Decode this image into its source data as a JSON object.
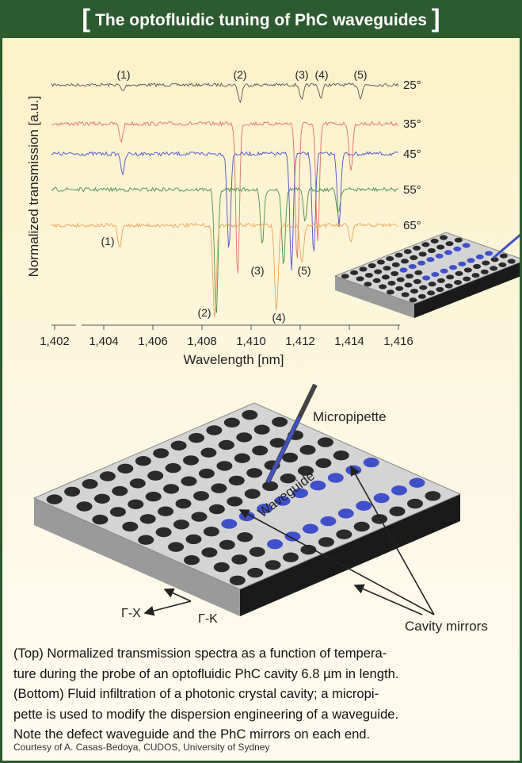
{
  "header": {
    "bracket_left": "[",
    "title": "The optofluidic tuning of PhC waveguides",
    "bracket_right": "]"
  },
  "spectrum": {
    "y_label": "Normalized transmission [a.u.]",
    "x_label": "Wavelength [nm]",
    "x_ticks": [
      "1,402",
      "1,404",
      "1,406",
      "1,408",
      "1,410",
      "1,412",
      "1,414",
      "1,416"
    ],
    "traces": [
      "25°",
      "35°",
      "45°",
      "55°",
      "65°"
    ],
    "top_peaks": [
      "(1)",
      "(2)",
      "(3)",
      "(4)",
      "(5)"
    ],
    "bottom_peaks": [
      "(1)",
      "(2)",
      "(3)",
      "(4)",
      "(5)"
    ]
  },
  "diagram": {
    "micropipette": "Micropipette",
    "waveguide": "Waveguide",
    "gamma_x": "Γ-X",
    "gamma_k": "Γ-K",
    "cavity_mirrors": "Cavity mirrors"
  },
  "caption": {
    "lines": [
      "(Top) Normalized transmission spectra as a function of tempera-",
      "ture during the probe of an optofluidic PhC cavity 6.8 µm in length.",
      "(Bottom) Fluid infiltration of a photonic crystal cavity; a micropi-",
      "pette is used to modify the dispersion engineering of a waveguide.",
      "Note the defect waveguide and the PhC mirrors on each end."
    ],
    "credit": "Courtesy of A. Casas-Bedoya, CUDOS, University of Sydney"
  }
}
